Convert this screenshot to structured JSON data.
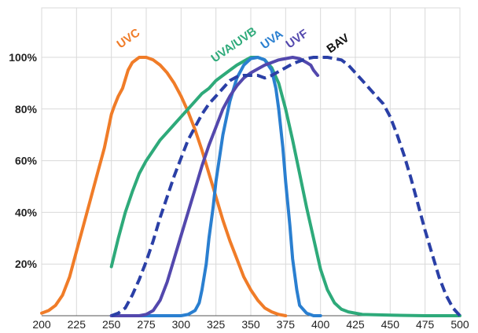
{
  "chart_data": {
    "type": "line",
    "title": "",
    "xlabel": "",
    "ylabel": "",
    "xlim": [
      200,
      500
    ],
    "ylim": [
      0,
      100
    ],
    "grid": true,
    "x_ticks": [
      200,
      225,
      250,
      275,
      300,
      325,
      350,
      375,
      400,
      425,
      450,
      475,
      500
    ],
    "y_ticks": [
      {
        "value": 20,
        "label": "20%"
      },
      {
        "value": 40,
        "label": "40%"
      },
      {
        "value": 60,
        "label": "60%"
      },
      {
        "value": 80,
        "label": "80%"
      },
      {
        "value": 100,
        "label": "100%"
      }
    ],
    "series": [
      {
        "name": "UVC",
        "color": "#F07C28",
        "dashed": false,
        "points": [
          [
            200,
            1
          ],
          [
            205,
            2
          ],
          [
            210,
            4
          ],
          [
            215,
            8
          ],
          [
            220,
            15
          ],
          [
            225,
            25
          ],
          [
            230,
            35
          ],
          [
            235,
            45
          ],
          [
            240,
            55
          ],
          [
            245,
            65
          ],
          [
            250,
            78
          ],
          [
            252,
            81
          ],
          [
            255,
            85
          ],
          [
            258,
            88
          ],
          [
            262,
            95
          ],
          [
            265,
            98
          ],
          [
            270,
            100
          ],
          [
            275,
            100
          ],
          [
            280,
            99
          ],
          [
            285,
            97
          ],
          [
            290,
            94
          ],
          [
            295,
            90
          ],
          [
            300,
            85
          ],
          [
            305,
            79
          ],
          [
            310,
            72
          ],
          [
            315,
            64
          ],
          [
            320,
            55
          ],
          [
            325,
            46
          ],
          [
            330,
            37
          ],
          [
            335,
            29
          ],
          [
            340,
            22
          ],
          [
            345,
            15
          ],
          [
            350,
            10
          ],
          [
            355,
            6
          ],
          [
            360,
            3
          ],
          [
            365,
            1.5
          ],
          [
            370,
            0.5
          ],
          [
            375,
            0
          ]
        ]
      },
      {
        "name": "UVA/UVB",
        "color": "#2EAA7A",
        "dashed": false,
        "points": [
          [
            250,
            19
          ],
          [
            255,
            30
          ],
          [
            260,
            40
          ],
          [
            265,
            48
          ],
          [
            270,
            55
          ],
          [
            275,
            60
          ],
          [
            280,
            64
          ],
          [
            285,
            68
          ],
          [
            290,
            71
          ],
          [
            295,
            74
          ],
          [
            300,
            77
          ],
          [
            305,
            80
          ],
          [
            310,
            83
          ],
          [
            315,
            86
          ],
          [
            320,
            88
          ],
          [
            325,
            91
          ],
          [
            330,
            93
          ],
          [
            335,
            95
          ],
          [
            340,
            97
          ],
          [
            345,
            98.5
          ],
          [
            350,
            100
          ],
          [
            355,
            100
          ],
          [
            360,
            99
          ],
          [
            365,
            96
          ],
          [
            370,
            90
          ],
          [
            375,
            80
          ],
          [
            380,
            68
          ],
          [
            385,
            55
          ],
          [
            390,
            42
          ],
          [
            395,
            30
          ],
          [
            400,
            18
          ],
          [
            405,
            10
          ],
          [
            410,
            5
          ],
          [
            415,
            2.5
          ],
          [
            420,
            1.5
          ],
          [
            430,
            0.5
          ],
          [
            450,
            0.2
          ],
          [
            475,
            0
          ],
          [
            500,
            0
          ]
        ]
      },
      {
        "name": "UVA",
        "color": "#2A7FD0",
        "dashed": false,
        "points": [
          [
            250,
            0
          ],
          [
            300,
            0
          ],
          [
            305,
            0.5
          ],
          [
            310,
            2
          ],
          [
            313,
            5
          ],
          [
            315,
            10
          ],
          [
            318,
            20
          ],
          [
            320,
            30
          ],
          [
            323,
            42
          ],
          [
            325,
            52
          ],
          [
            330,
            70
          ],
          [
            335,
            83
          ],
          [
            340,
            92
          ],
          [
            345,
            97
          ],
          [
            350,
            99.5
          ],
          [
            355,
            100
          ],
          [
            360,
            99
          ],
          [
            365,
            95
          ],
          [
            368,
            88
          ],
          [
            370,
            80
          ],
          [
            373,
            65
          ],
          [
            375,
            52
          ],
          [
            378,
            35
          ],
          [
            380,
            22
          ],
          [
            383,
            10
          ],
          [
            385,
            4
          ],
          [
            390,
            1
          ],
          [
            395,
            0
          ],
          [
            400,
            0
          ]
        ]
      },
      {
        "name": "UVF",
        "color": "#5348AD",
        "dashed": false,
        "points": [
          [
            250,
            0
          ],
          [
            270,
            0
          ],
          [
            275,
            0.5
          ],
          [
            280,
            2
          ],
          [
            285,
            6
          ],
          [
            290,
            13
          ],
          [
            295,
            22
          ],
          [
            300,
            31
          ],
          [
            305,
            40
          ],
          [
            310,
            49
          ],
          [
            315,
            58
          ],
          [
            320,
            66
          ],
          [
            325,
            73
          ],
          [
            330,
            80
          ],
          [
            335,
            85
          ],
          [
            340,
            89
          ],
          [
            345,
            92
          ],
          [
            350,
            94
          ],
          [
            355,
            95.5
          ],
          [
            360,
            97
          ],
          [
            365,
            98
          ],
          [
            370,
            99
          ],
          [
            375,
            99.5
          ],
          [
            380,
            100
          ],
          [
            385,
            99.5
          ],
          [
            390,
            98
          ],
          [
            393,
            97
          ],
          [
            395,
            95
          ],
          [
            398,
            93
          ]
        ]
      },
      {
        "name": "BAV",
        "color": "#2A3FA6",
        "dashed": true,
        "points": [
          [
            250,
            0
          ],
          [
            255,
            1
          ],
          [
            260,
            3
          ],
          [
            265,
            8
          ],
          [
            270,
            14
          ],
          [
            275,
            21
          ],
          [
            280,
            29
          ],
          [
            285,
            38
          ],
          [
            290,
            46
          ],
          [
            295,
            54
          ],
          [
            300,
            61
          ],
          [
            305,
            68
          ],
          [
            310,
            73
          ],
          [
            315,
            78
          ],
          [
            320,
            82
          ],
          [
            325,
            85
          ],
          [
            330,
            88
          ],
          [
            335,
            91
          ],
          [
            340,
            92.5
          ],
          [
            345,
            93
          ],
          [
            350,
            93
          ],
          [
            355,
            93
          ],
          [
            360,
            92
          ],
          [
            365,
            93
          ],
          [
            370,
            94.5
          ],
          [
            375,
            96
          ],
          [
            380,
            97.5
          ],
          [
            385,
            98.5
          ],
          [
            390,
            99.5
          ],
          [
            395,
            100
          ],
          [
            400,
            100
          ],
          [
            405,
            100
          ],
          [
            410,
            99.5
          ],
          [
            415,
            99
          ],
          [
            420,
            97
          ],
          [
            425,
            94
          ],
          [
            430,
            91
          ],
          [
            435,
            88
          ],
          [
            440,
            85
          ],
          [
            445,
            82
          ],
          [
            450,
            77
          ],
          [
            455,
            70
          ],
          [
            460,
            62
          ],
          [
            465,
            53
          ],
          [
            470,
            43
          ],
          [
            475,
            33
          ],
          [
            480,
            24
          ],
          [
            485,
            15
          ],
          [
            490,
            8
          ],
          [
            495,
            3
          ],
          [
            500,
            0
          ]
        ]
      }
    ],
    "labels": [
      {
        "series": "UVC",
        "text": "UVC",
        "color": "#F07C28"
      },
      {
        "series": "UVA/UVB",
        "text": "UVA/UVB",
        "color": "#2EAA7A"
      },
      {
        "series": "UVA",
        "text": "UVA",
        "color": "#2A7FD0"
      },
      {
        "series": "UVF",
        "text": "UVF",
        "color": "#5348AD"
      },
      {
        "series": "BAV",
        "text": "BAV",
        "color": "#111111"
      }
    ]
  }
}
